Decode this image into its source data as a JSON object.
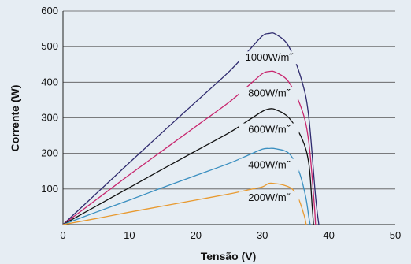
{
  "chart_data": {
    "type": "line",
    "xlabel": "Tensão (V)",
    "ylabel": "Corrente (W)",
    "xlim": [
      0,
      50
    ],
    "ylim": [
      0,
      600
    ],
    "xticks": [
      0,
      10,
      20,
      30,
      40,
      50
    ],
    "yticks": [
      100,
      200,
      300,
      400,
      500,
      600
    ],
    "grid": "horizontal",
    "legend": "inline labels",
    "series": [
      {
        "name": "1000W/m˝",
        "color": "#2e2a6e",
        "points": [
          [
            0,
            0
          ],
          [
            5,
            87
          ],
          [
            10,
            174
          ],
          [
            15,
            260
          ],
          [
            20,
            345
          ],
          [
            25,
            430
          ],
          [
            28,
            490
          ],
          [
            30,
            530
          ],
          [
            31,
            537
          ],
          [
            32,
            535
          ],
          [
            34,
            500
          ],
          [
            36,
            400
          ],
          [
            37,
            300
          ],
          [
            38,
            80
          ],
          [
            38.5,
            0
          ]
        ]
      },
      {
        "name": "800W/m˝",
        "color": "#c8266e",
        "points": [
          [
            0,
            0
          ],
          [
            5,
            70
          ],
          [
            10,
            140
          ],
          [
            15,
            208
          ],
          [
            20,
            276
          ],
          [
            25,
            344
          ],
          [
            28,
            392
          ],
          [
            30,
            424
          ],
          [
            31,
            430
          ],
          [
            32,
            428
          ],
          [
            34,
            400
          ],
          [
            36,
            320
          ],
          [
            37,
            230
          ],
          [
            37.8,
            60
          ],
          [
            38,
            0
          ]
        ]
      },
      {
        "name": "600W/m˝",
        "color": "#111111",
        "points": [
          [
            0,
            0
          ],
          [
            5,
            52
          ],
          [
            10,
            104
          ],
          [
            15,
            156
          ],
          [
            20,
            207
          ],
          [
            25,
            258
          ],
          [
            28,
            294
          ],
          [
            30,
            318
          ],
          [
            31,
            325
          ],
          [
            32,
            323
          ],
          [
            34,
            300
          ],
          [
            36,
            240
          ],
          [
            37,
            170
          ],
          [
            37.5,
            50
          ],
          [
            37.7,
            0
          ]
        ]
      },
      {
        "name": "400W/m˝",
        "color": "#3a8fc0",
        "points": [
          [
            0,
            0
          ],
          [
            5,
            35
          ],
          [
            10,
            69
          ],
          [
            15,
            104
          ],
          [
            20,
            138
          ],
          [
            25,
            172
          ],
          [
            28,
            196
          ],
          [
            30,
            212
          ],
          [
            31,
            214
          ],
          [
            32,
            213
          ],
          [
            34,
            200
          ],
          [
            35.5,
            150
          ],
          [
            36.5,
            80
          ],
          [
            37,
            20
          ],
          [
            37.2,
            0
          ]
        ]
      },
      {
        "name": "200W/m˝",
        "color": "#e89a30",
        "points": [
          [
            0,
            0
          ],
          [
            5,
            17
          ],
          [
            10,
            35
          ],
          [
            15,
            52
          ],
          [
            20,
            69
          ],
          [
            25,
            86
          ],
          [
            28,
            98
          ],
          [
            30,
            106
          ],
          [
            31,
            116
          ],
          [
            32,
            115
          ],
          [
            33,
            112
          ],
          [
            34.5,
            100
          ],
          [
            35.5,
            70
          ],
          [
            36.3,
            25
          ],
          [
            36.6,
            0
          ]
        ]
      }
    ]
  }
}
